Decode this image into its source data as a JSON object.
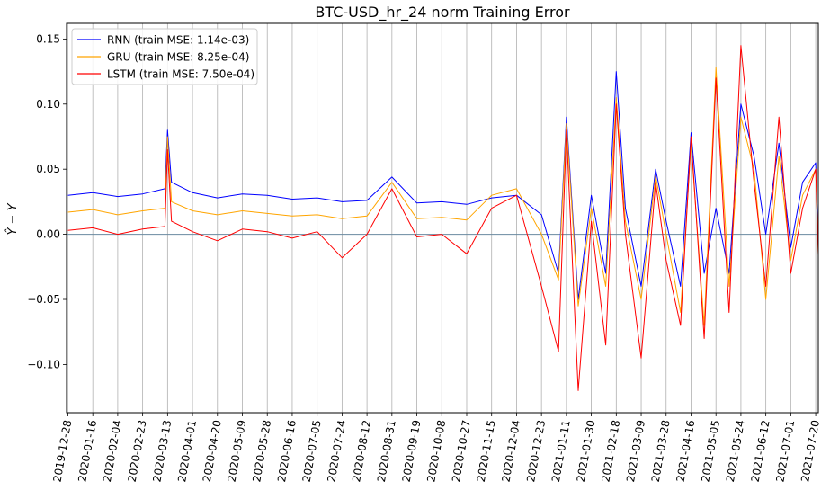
{
  "chart_data": {
    "type": "line",
    "title": "BTC-USD_hr_24 norm Training Error",
    "xlabel": "",
    "ylabel": "Ŷ − Y",
    "xlim": [
      "2019-12-27",
      "2021-07-22"
    ],
    "ylim": [
      -0.137,
      0.162
    ],
    "grid": "vertical",
    "legend_position": "top-left",
    "x_tick_labels": [
      "2019-12-28",
      "2020-01-16",
      "2020-02-04",
      "2020-02-23",
      "2020-03-13",
      "2020-04-01",
      "2020-04-20",
      "2020-05-09",
      "2020-05-28",
      "2020-06-16",
      "2020-07-05",
      "2020-07-24",
      "2020-08-12",
      "2020-08-31",
      "2020-09-19",
      "2020-10-08",
      "2020-10-27",
      "2020-11-15",
      "2020-12-04",
      "2020-12-23",
      "2021-01-11",
      "2021-01-30",
      "2021-02-18",
      "2021-03-09",
      "2021-03-28",
      "2021-04-16",
      "2021-05-05",
      "2021-05-24",
      "2021-06-12",
      "2021-07-01",
      "2021-07-20"
    ],
    "y_ticks": [
      -0.1,
      -0.05,
      0.0,
      0.05,
      0.1,
      0.15
    ],
    "y_tick_labels": [
      "−0.10",
      "−0.05",
      "0.00",
      "0.05",
      "0.10",
      "0.15"
    ],
    "reference_line_y": 0.0,
    "series": [
      {
        "name": "RNN (train MSE: 1.14e-03)",
        "color": "#0000ff",
        "x": [
          "2019-12-28",
          "2020-01-16",
          "2020-02-04",
          "2020-02-23",
          "2020-03-11",
          "2020-03-13",
          "2020-03-16",
          "2020-04-01",
          "2020-04-20",
          "2020-05-09",
          "2020-05-28",
          "2020-06-16",
          "2020-07-05",
          "2020-07-24",
          "2020-08-12",
          "2020-08-31",
          "2020-09-19",
          "2020-10-08",
          "2020-10-27",
          "2020-11-15",
          "2020-12-04",
          "2020-12-23",
          "2021-01-05",
          "2021-01-11",
          "2021-01-20",
          "2021-01-30",
          "2021-02-10",
          "2021-02-18",
          "2021-02-25",
          "2021-03-09",
          "2021-03-20",
          "2021-03-28",
          "2021-04-08",
          "2021-04-16",
          "2021-04-26",
          "2021-05-05",
          "2021-05-15",
          "2021-05-24",
          "2021-06-03",
          "2021-06-12",
          "2021-06-22",
          "2021-07-01",
          "2021-07-10",
          "2021-07-20",
          "2021-07-22"
        ],
        "y": [
          0.03,
          0.032,
          0.029,
          0.031,
          0.035,
          0.08,
          0.04,
          0.032,
          0.028,
          0.031,
          0.03,
          0.027,
          0.028,
          0.025,
          0.026,
          0.044,
          0.024,
          0.025,
          0.023,
          0.028,
          0.03,
          0.015,
          -0.03,
          0.09,
          -0.05,
          0.03,
          -0.03,
          0.125,
          0.02,
          -0.04,
          0.05,
          0.01,
          -0.04,
          0.078,
          -0.03,
          0.02,
          -0.03,
          0.1,
          0.06,
          0.0,
          0.07,
          -0.01,
          0.04,
          0.055,
          -0.01
        ]
      },
      {
        "name": "GRU (train MSE: 8.25e-04)",
        "color": "#ffa500",
        "x": [
          "2019-12-28",
          "2020-01-16",
          "2020-02-04",
          "2020-02-23",
          "2020-03-11",
          "2020-03-13",
          "2020-03-16",
          "2020-04-01",
          "2020-04-20",
          "2020-05-09",
          "2020-05-28",
          "2020-06-16",
          "2020-07-05",
          "2020-07-24",
          "2020-08-12",
          "2020-08-31",
          "2020-09-19",
          "2020-10-08",
          "2020-10-27",
          "2020-11-15",
          "2020-12-04",
          "2020-12-23",
          "2021-01-05",
          "2021-01-11",
          "2021-01-20",
          "2021-01-30",
          "2021-02-10",
          "2021-02-18",
          "2021-02-25",
          "2021-03-09",
          "2021-03-20",
          "2021-03-28",
          "2021-04-08",
          "2021-04-16",
          "2021-04-26",
          "2021-05-05",
          "2021-05-15",
          "2021-05-24",
          "2021-06-03",
          "2021-06-12",
          "2021-06-22",
          "2021-07-01",
          "2021-07-10",
          "2021-07-20",
          "2021-07-22"
        ],
        "y": [
          0.017,
          0.019,
          0.015,
          0.018,
          0.02,
          0.075,
          0.025,
          0.018,
          0.015,
          0.018,
          0.016,
          0.014,
          0.015,
          0.012,
          0.014,
          0.04,
          0.012,
          0.013,
          0.011,
          0.03,
          0.035,
          0.0,
          -0.035,
          0.085,
          -0.055,
          0.02,
          -0.04,
          0.105,
          0.01,
          -0.05,
          0.045,
          0.0,
          -0.06,
          0.07,
          -0.07,
          0.128,
          -0.04,
          0.09,
          0.05,
          -0.05,
          0.06,
          -0.02,
          0.03,
          0.05,
          -0.015
        ]
      },
      {
        "name": "LSTM (train MSE: 7.50e-04)",
        "color": "#ff0000",
        "x": [
          "2019-12-28",
          "2020-01-16",
          "2020-02-04",
          "2020-02-23",
          "2020-03-11",
          "2020-03-13",
          "2020-03-16",
          "2020-04-01",
          "2020-04-20",
          "2020-05-09",
          "2020-05-28",
          "2020-06-16",
          "2020-07-05",
          "2020-07-24",
          "2020-08-12",
          "2020-08-31",
          "2020-09-19",
          "2020-10-08",
          "2020-10-27",
          "2020-11-15",
          "2020-12-04",
          "2020-12-23",
          "2021-01-05",
          "2021-01-11",
          "2021-01-20",
          "2021-01-30",
          "2021-02-10",
          "2021-02-18",
          "2021-02-25",
          "2021-03-09",
          "2021-03-20",
          "2021-03-28",
          "2021-04-08",
          "2021-04-16",
          "2021-04-26",
          "2021-05-05",
          "2021-05-15",
          "2021-05-24",
          "2021-06-03",
          "2021-06-12",
          "2021-06-22",
          "2021-07-01",
          "2021-07-10",
          "2021-07-20",
          "2021-07-22"
        ],
        "y": [
          0.003,
          0.005,
          0.0,
          0.004,
          0.006,
          0.065,
          0.01,
          0.002,
          -0.005,
          0.004,
          0.002,
          -0.003,
          0.002,
          -0.018,
          0.0,
          0.035,
          -0.002,
          0.0,
          -0.015,
          0.02,
          0.03,
          -0.04,
          -0.09,
          0.08,
          -0.12,
          0.01,
          -0.085,
          0.1,
          0.0,
          -0.095,
          0.04,
          -0.02,
          -0.07,
          0.075,
          -0.08,
          0.12,
          -0.06,
          0.145,
          0.04,
          -0.04,
          0.09,
          -0.03,
          0.02,
          0.05,
          -0.016
        ]
      }
    ]
  }
}
